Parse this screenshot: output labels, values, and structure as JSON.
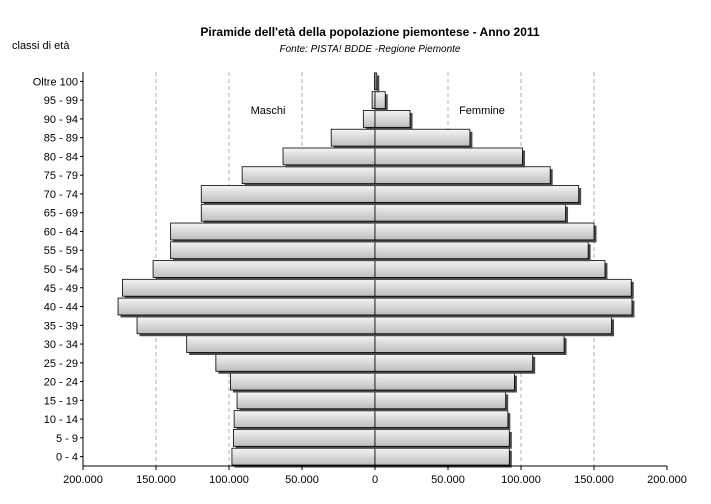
{
  "chart_data": {
    "type": "bar",
    "orientation": "horizontal",
    "layout": "population-pyramid",
    "title": "Piramide dell'età della popolazione piemontese - Anno 2011",
    "subtitle": "Fonte: PISTA! BDDE -Regione Piemonte",
    "ylabel": "classi di età",
    "left_label": "Maschi",
    "right_label": "Femmine",
    "categories": [
      "0 - 4",
      "5 - 9",
      "10 - 14",
      "15 - 19",
      "20 - 24",
      "25 - 29",
      "30 - 34",
      "35 - 39",
      "40 - 44",
      "45 - 49",
      "50 - 54",
      "55 - 59",
      "60 - 64",
      "65 - 69",
      "70 - 74",
      "75 - 79",
      "80 - 84",
      "85 - 89",
      "90 - 94",
      "95 - 99",
      "Oltre 100"
    ],
    "series": [
      {
        "side": "left",
        "label": "Maschi",
        "values": [
          98000,
          97000,
          96500,
          94500,
          99000,
          109000,
          129000,
          163000,
          176000,
          173000,
          152000,
          140000,
          140000,
          119000,
          119000,
          91000,
          63000,
          30000,
          8000,
          2000,
          300
        ]
      },
      {
        "side": "right",
        "label": "Femmine",
        "values": [
          92000,
          92000,
          91000,
          89500,
          95500,
          108000,
          129500,
          162000,
          176000,
          175500,
          157500,
          146000,
          150000,
          130500,
          139500,
          120000,
          101000,
          65000,
          24000,
          7000,
          1200
        ]
      }
    ],
    "xlim": [
      -200000,
      200000
    ],
    "x_ticks": [
      -200000,
      -150000,
      -100000,
      -50000,
      0,
      50000,
      100000,
      150000,
      200000
    ],
    "x_tick_labels": [
      "200.000",
      "150.000",
      "100.000",
      "50.000",
      "0",
      "50.000",
      "100.000",
      "150.000",
      "200.000"
    ],
    "grid": "vertical-dashed",
    "colors": {
      "bar_fill_light": "#f4f4f4",
      "bar_fill_dark": "#bdbdbd",
      "bar_stroke": "#000000",
      "shadow": "#4a4a4a",
      "grid": "#b0b0b0"
    }
  }
}
